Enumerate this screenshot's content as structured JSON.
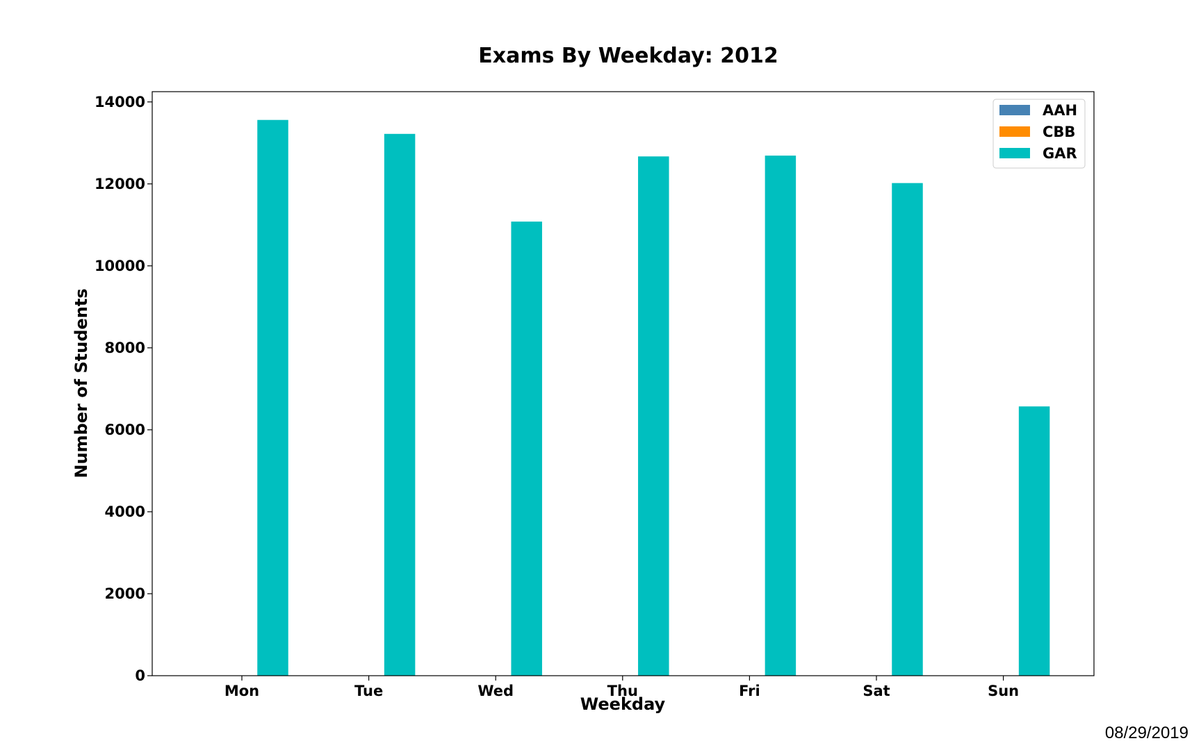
{
  "footer": {
    "date": "08/29/2019"
  },
  "chart_data": {
    "type": "bar",
    "title": "Exams By Weekday: 2012",
    "xlabel": "Weekday",
    "ylabel": "Number of Students",
    "categories": [
      "Mon",
      "Tue",
      "Wed",
      "Thu",
      "Fri",
      "Sat",
      "Sun"
    ],
    "ylim": [
      0,
      14250
    ],
    "yticks": [
      0,
      2000,
      4000,
      6000,
      8000,
      10000,
      12000,
      14000
    ],
    "grid": false,
    "legend_position": "top-right",
    "series": [
      {
        "name": "AAH",
        "color": "#4682b4",
        "values": [
          0,
          0,
          0,
          0,
          0,
          0,
          0
        ]
      },
      {
        "name": "CBB",
        "color": "#ff8c00",
        "values": [
          0,
          0,
          0,
          0,
          0,
          0,
          0
        ]
      },
      {
        "name": "GAR",
        "color": "#00bfbf",
        "values": [
          13560,
          13220,
          11080,
          12670,
          12690,
          12020,
          6570
        ]
      }
    ]
  }
}
